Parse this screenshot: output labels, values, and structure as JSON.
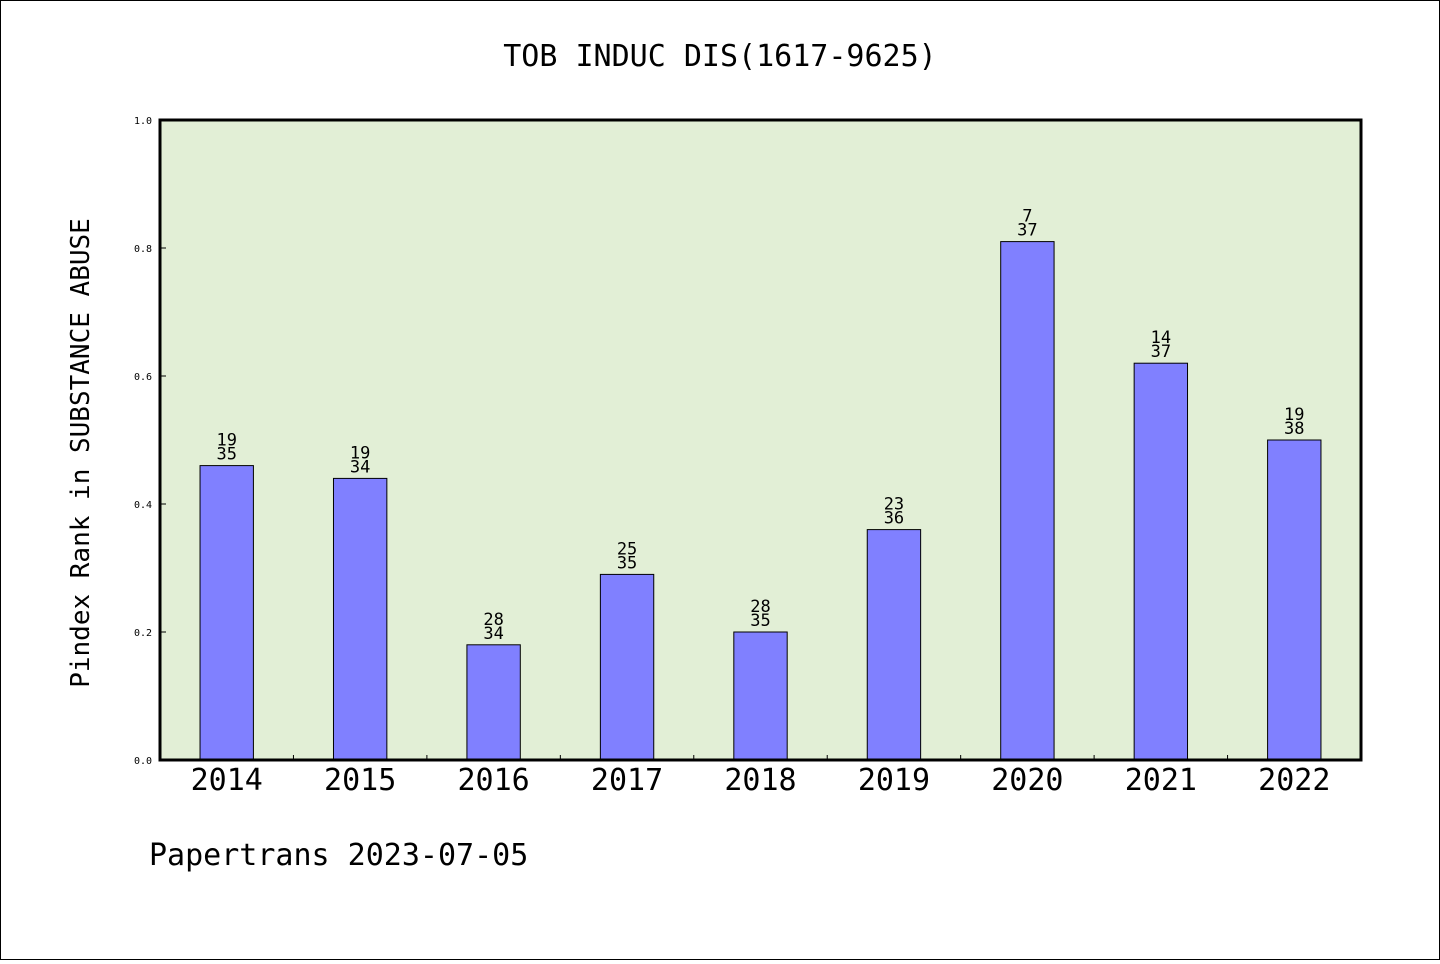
{
  "chart_data": {
    "type": "bar",
    "title": "TOB INDUC DIS(1617-9625)",
    "xlabel": "",
    "ylabel": "Pindex Rank in SUBSTANCE ABUSE",
    "ylim": [
      0.0,
      1.0
    ],
    "yticks": [
      "0.0",
      "0.2",
      "0.4",
      "0.6",
      "0.8",
      "1.0"
    ],
    "categories": [
      "2014",
      "2015",
      "2016",
      "2017",
      "2018",
      "2019",
      "2020",
      "2021",
      "2022"
    ],
    "values": [
      0.46,
      0.44,
      0.18,
      0.29,
      0.2,
      0.36,
      0.81,
      0.62,
      0.5
    ],
    "label_top": [
      "19",
      "19",
      "28",
      "25",
      "28",
      "23",
      "7",
      "14",
      "19"
    ],
    "label_bottom": [
      "35",
      "34",
      "34",
      "35",
      "35",
      "36",
      "37",
      "37",
      "38"
    ],
    "bar_color": "#8080ff",
    "plot_background": "#e2efd6",
    "grid": false
  },
  "footer": "Papertrans 2023-07-05"
}
